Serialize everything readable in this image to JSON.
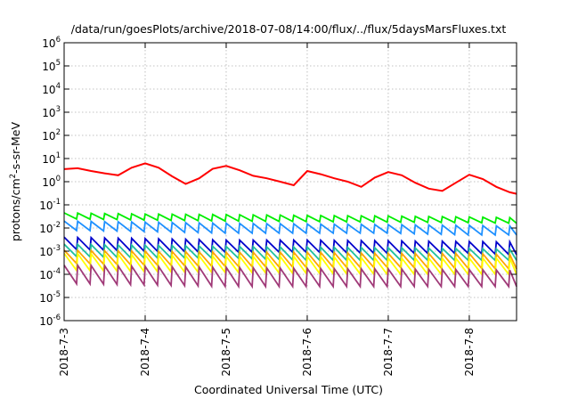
{
  "chart_data": {
    "type": "line",
    "title": "/data/run/goesPlots/archive/2018-07-08/14:00/flux/../flux/5daysMarsFluxes.txt",
    "xlabel": "Coordinated Universal Time (UTC)",
    "ylabel_base": "protons/cm",
    "ylabel_sup": "2",
    "ylabel_rest": "-s-sr-MeV",
    "yscale": "log",
    "ylim_exponents": [
      -6,
      6
    ],
    "y_ticks": [
      {
        "base": "10",
        "exp": "-6"
      },
      {
        "base": "10",
        "exp": "-5"
      },
      {
        "base": "10",
        "exp": "-4"
      },
      {
        "base": "10",
        "exp": "-3"
      },
      {
        "base": "10",
        "exp": "-2"
      },
      {
        "base": "10",
        "exp": "-1"
      },
      {
        "base": "10",
        "exp": "0"
      },
      {
        "base": "10",
        "exp": "1"
      },
      {
        "base": "10",
        "exp": "2"
      },
      {
        "base": "10",
        "exp": "3"
      },
      {
        "base": "10",
        "exp": "4"
      },
      {
        "base": "10",
        "exp": "5"
      },
      {
        "base": "10",
        "exp": "6"
      }
    ],
    "x_ticks": [
      "2018-7-3",
      "2018-7-4",
      "2018-7-5",
      "2018-7-6",
      "2018-7-7",
      "2018-7-8"
    ],
    "xlim": [
      "2018-07-03T00:00",
      "2018-07-08T14:00"
    ],
    "grid": true,
    "series": [
      {
        "color": "#ff0000",
        "style": "smooth",
        "x": [
          "2018-07-03T00:00",
          "2018-07-03T04:00",
          "2018-07-03T08:00",
          "2018-07-03T12:00",
          "2018-07-03T16:00",
          "2018-07-03T20:00",
          "2018-07-04T00:00",
          "2018-07-04T04:00",
          "2018-07-04T08:00",
          "2018-07-04T12:00",
          "2018-07-04T16:00",
          "2018-07-04T20:00",
          "2018-07-05T00:00",
          "2018-07-05T04:00",
          "2018-07-05T08:00",
          "2018-07-05T12:00",
          "2018-07-05T16:00",
          "2018-07-05T20:00",
          "2018-07-06T00:00",
          "2018-07-06T04:00",
          "2018-07-06T08:00",
          "2018-07-06T12:00",
          "2018-07-06T16:00",
          "2018-07-06T20:00",
          "2018-07-07T00:00",
          "2018-07-07T04:00",
          "2018-07-07T08:00",
          "2018-07-07T12:00",
          "2018-07-07T16:00",
          "2018-07-07T20:00",
          "2018-07-08T00:00",
          "2018-07-08T04:00",
          "2018-07-08T08:00",
          "2018-07-08T12:00",
          "2018-07-08T14:00"
        ],
        "y": [
          3.5,
          3.8,
          2.9,
          2.3,
          1.9,
          4.0,
          6.2,
          4.0,
          1.7,
          0.8,
          1.4,
          3.6,
          4.8,
          3.1,
          1.8,
          1.4,
          1.0,
          0.7,
          2.9,
          2.1,
          1.4,
          1.0,
          0.6,
          1.5,
          2.6,
          1.9,
          0.9,
          0.5,
          0.4,
          0.9,
          2.0,
          1.3,
          0.6,
          0.35,
          0.3
        ]
      },
      {
        "color": "#00ee00",
        "style": "sawtooth",
        "period_hours": 4,
        "x": [
          "2018-07-03T00:00",
          "2018-07-04T00:00",
          "2018-07-05T00:00",
          "2018-07-06T00:00",
          "2018-07-07T00:00",
          "2018-07-08T00:00",
          "2018-07-08T14:00"
        ],
        "y_peak": [
          0.045,
          0.04,
          0.038,
          0.035,
          0.033,
          0.03,
          0.028
        ],
        "y_trough": [
          0.025,
          0.022,
          0.02,
          0.019,
          0.018,
          0.017,
          0.016
        ]
      },
      {
        "color": "#1e90ff",
        "style": "sawtooth",
        "period_hours": 4,
        "x": [
          "2018-07-03T00:00",
          "2018-07-04T00:00",
          "2018-07-05T00:00",
          "2018-07-06T00:00",
          "2018-07-07T00:00",
          "2018-07-08T00:00",
          "2018-07-08T14:00"
        ],
        "y_peak": [
          0.02,
          0.018,
          0.016,
          0.015,
          0.014,
          0.013,
          0.012
        ],
        "y_trough": [
          0.008,
          0.007,
          0.006,
          0.006,
          0.006,
          0.005,
          0.005
        ]
      },
      {
        "color": "#0000cc",
        "style": "sawtooth",
        "period_hours": 4,
        "x": [
          "2018-07-03T00:00",
          "2018-07-04T00:00",
          "2018-07-05T00:00",
          "2018-07-06T00:00",
          "2018-07-07T00:00",
          "2018-07-08T00:00",
          "2018-07-08T14:00"
        ],
        "y_peak": [
          0.004,
          0.0035,
          0.003,
          0.003,
          0.0028,
          0.0026,
          0.0025
        ],
        "y_trough": [
          0.0012,
          0.001,
          0.0009,
          0.0009,
          0.0008,
          0.0008,
          0.0007
        ]
      },
      {
        "color": "#20c0a0",
        "style": "sawtooth",
        "period_hours": 4,
        "x": [
          "2018-07-03T00:00",
          "2018-07-04T00:00",
          "2018-07-05T00:00",
          "2018-07-06T00:00",
          "2018-07-07T00:00",
          "2018-07-08T00:00",
          "2018-07-08T14:00"
        ],
        "y_peak": [
          0.002,
          0.0018,
          0.0016,
          0.0015,
          0.0014,
          0.0013,
          0.0012
        ],
        "y_trough": [
          0.0006,
          0.0005,
          0.0005,
          0.0004,
          0.0004,
          0.0004,
          0.0004
        ]
      },
      {
        "color": "#ffa500",
        "style": "sawtooth",
        "period_hours": 4,
        "x": [
          "2018-07-03T00:00",
          "2018-07-04T00:00",
          "2018-07-05T00:00",
          "2018-07-06T00:00",
          "2018-07-07T00:00",
          "2018-07-08T00:00",
          "2018-07-08T14:00"
        ],
        "y_peak": [
          0.0011,
          0.001,
          0.0009,
          0.0009,
          0.0008,
          0.0008,
          0.0007
        ],
        "y_trough": [
          0.0003,
          0.00025,
          0.00022,
          0.0002,
          0.0002,
          0.00018,
          0.00017
        ]
      },
      {
        "color": "#ffff00",
        "style": "sawtooth",
        "period_hours": 4,
        "x": [
          "2018-07-03T00:00",
          "2018-07-04T00:00",
          "2018-07-05T00:00",
          "2018-07-06T00:00",
          "2018-07-07T00:00",
          "2018-07-08T00:00",
          "2018-07-08T14:00"
        ],
        "y_peak": [
          0.0008,
          0.0007,
          0.0006,
          0.0006,
          0.0005,
          0.0005,
          0.0005
        ],
        "y_trough": [
          0.00015,
          0.00013,
          0.00012,
          0.00011,
          0.0001,
          0.0001,
          0.0001
        ]
      },
      {
        "color": "#a03a78",
        "style": "sawtooth",
        "period_hours": 4,
        "x": [
          "2018-07-03T00:00",
          "2018-07-04T00:00",
          "2018-07-05T00:00",
          "2018-07-06T00:00",
          "2018-07-07T00:00",
          "2018-07-08T00:00",
          "2018-07-08T14:00"
        ],
        "y_peak": [
          0.00025,
          0.00022,
          0.0002,
          0.00018,
          0.00017,
          0.00016,
          0.00015
        ],
        "y_trough": [
          4e-05,
          3.5e-05,
          3e-05,
          3e-05,
          3e-05,
          3e-05,
          3e-05
        ]
      }
    ]
  }
}
